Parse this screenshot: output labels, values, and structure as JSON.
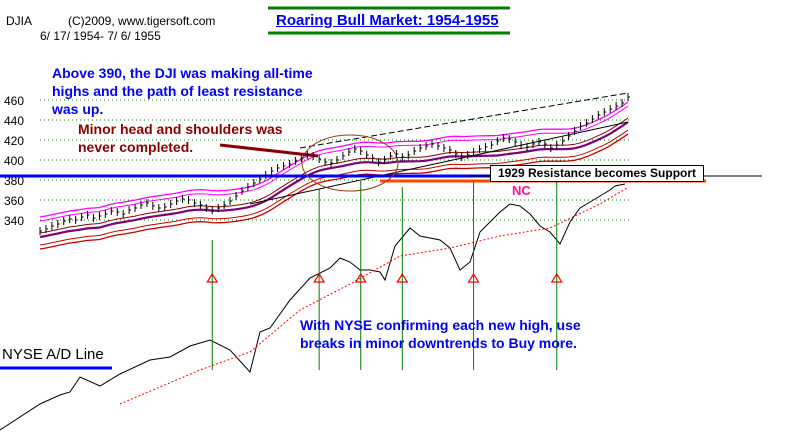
{
  "header": {
    "index": "DJIA",
    "copyright": "(C)2009, www.tigersoft.com",
    "date_range": "6/ 17/ 1954- 7/ 6/ 1955"
  },
  "annotations": {
    "title": "Roaring Bull Market: 1954-1955",
    "note_ath": [
      "Above 390, the DJI was making all-time",
      "highs and the path of least resistance",
      "was up."
    ],
    "note_hs": [
      "Minor head and shoulders was",
      "never completed."
    ],
    "support_label": "1929 Resistance becomes Support",
    "nc_label": "NC",
    "nyse_note": [
      "With NYSE confirming each new high, use",
      "breaks in minor downtrends to Buy more."
    ],
    "ad_line_label": "NYSE A/D Line"
  },
  "colors": {
    "bars": "#000000",
    "upper_band": "#ff00ff",
    "lower_band": "#cc0000",
    "moving_average": "#800080",
    "support_line": "#0000ff",
    "resistance_line": "#ff4500",
    "signal_line": "#008000",
    "ad_line": "#000000",
    "ad_ma": "#ff0000"
  },
  "chart_data": {
    "type": "line",
    "y_axis": {
      "ticks": [
        460,
        440,
        420,
        400,
        380,
        360,
        340
      ],
      "ylim": [
        322,
        470
      ]
    },
    "djia_closes": [
      329,
      331,
      334,
      336,
      339,
      341,
      340,
      343,
      345,
      342,
      344,
      346,
      349,
      348,
      346,
      350,
      352,
      355,
      357,
      354,
      352,
      353,
      356,
      359,
      361,
      360,
      357,
      355,
      352,
      350,
      352,
      355,
      359,
      364,
      369,
      373,
      377,
      381,
      385,
      389,
      392,
      394,
      396,
      399,
      402,
      405,
      404,
      401,
      398,
      397,
      400,
      404,
      408,
      411,
      409,
      405,
      402,
      398,
      400,
      404,
      406,
      403,
      405,
      409,
      412,
      414,
      416,
      414,
      412,
      410,
      406,
      403,
      405,
      408,
      411,
      413,
      415,
      419,
      422,
      421,
      418,
      415,
      413,
      416,
      418,
      416,
      412,
      415,
      419,
      424,
      429,
      434,
      437,
      441,
      445,
      448,
      451,
      454,
      457,
      463
    ],
    "ad_line_points": [
      [
        0,
        430
      ],
      [
        40,
        404
      ],
      [
        60,
        395
      ],
      [
        70,
        392
      ],
      [
        80,
        377
      ],
      [
        100,
        386
      ],
      [
        120,
        374
      ],
      [
        150,
        360
      ],
      [
        170,
        357
      ],
      [
        190,
        346
      ],
      [
        210,
        340
      ],
      [
        230,
        350
      ],
      [
        250,
        372
      ],
      [
        260,
        332
      ],
      [
        270,
        328
      ],
      [
        290,
        300
      ],
      [
        310,
        278
      ],
      [
        330,
        268
      ],
      [
        340,
        258
      ],
      [
        350,
        262
      ],
      [
        360,
        270
      ],
      [
        370,
        270
      ],
      [
        380,
        272
      ],
      [
        385,
        280
      ],
      [
        395,
        246
      ],
      [
        410,
        228
      ],
      [
        420,
        236
      ],
      [
        440,
        240
      ],
      [
        450,
        248
      ],
      [
        460,
        270
      ],
      [
        470,
        262
      ],
      [
        480,
        232
      ],
      [
        490,
        222
      ],
      [
        500,
        212
      ],
      [
        510,
        204
      ],
      [
        520,
        206
      ],
      [
        530,
        214
      ],
      [
        540,
        226
      ],
      [
        550,
        232
      ],
      [
        560,
        244
      ],
      [
        570,
        222
      ],
      [
        580,
        208
      ],
      [
        590,
        202
      ],
      [
        600,
        196
      ],
      [
        610,
        190
      ],
      [
        615,
        186
      ],
      [
        625,
        184
      ]
    ],
    "ad_ma_points": [
      [
        120,
        404
      ],
      [
        200,
        370
      ],
      [
        250,
        352
      ],
      [
        300,
        310
      ],
      [
        350,
        284
      ],
      [
        400,
        256
      ],
      [
        450,
        248
      ],
      [
        500,
        236
      ],
      [
        550,
        228
      ],
      [
        600,
        204
      ],
      [
        627,
        188
      ]
    ],
    "support_level": 390,
    "resistance_level": 387,
    "signals_x_index": [
      29,
      47,
      54,
      61,
      73,
      87
    ]
  }
}
